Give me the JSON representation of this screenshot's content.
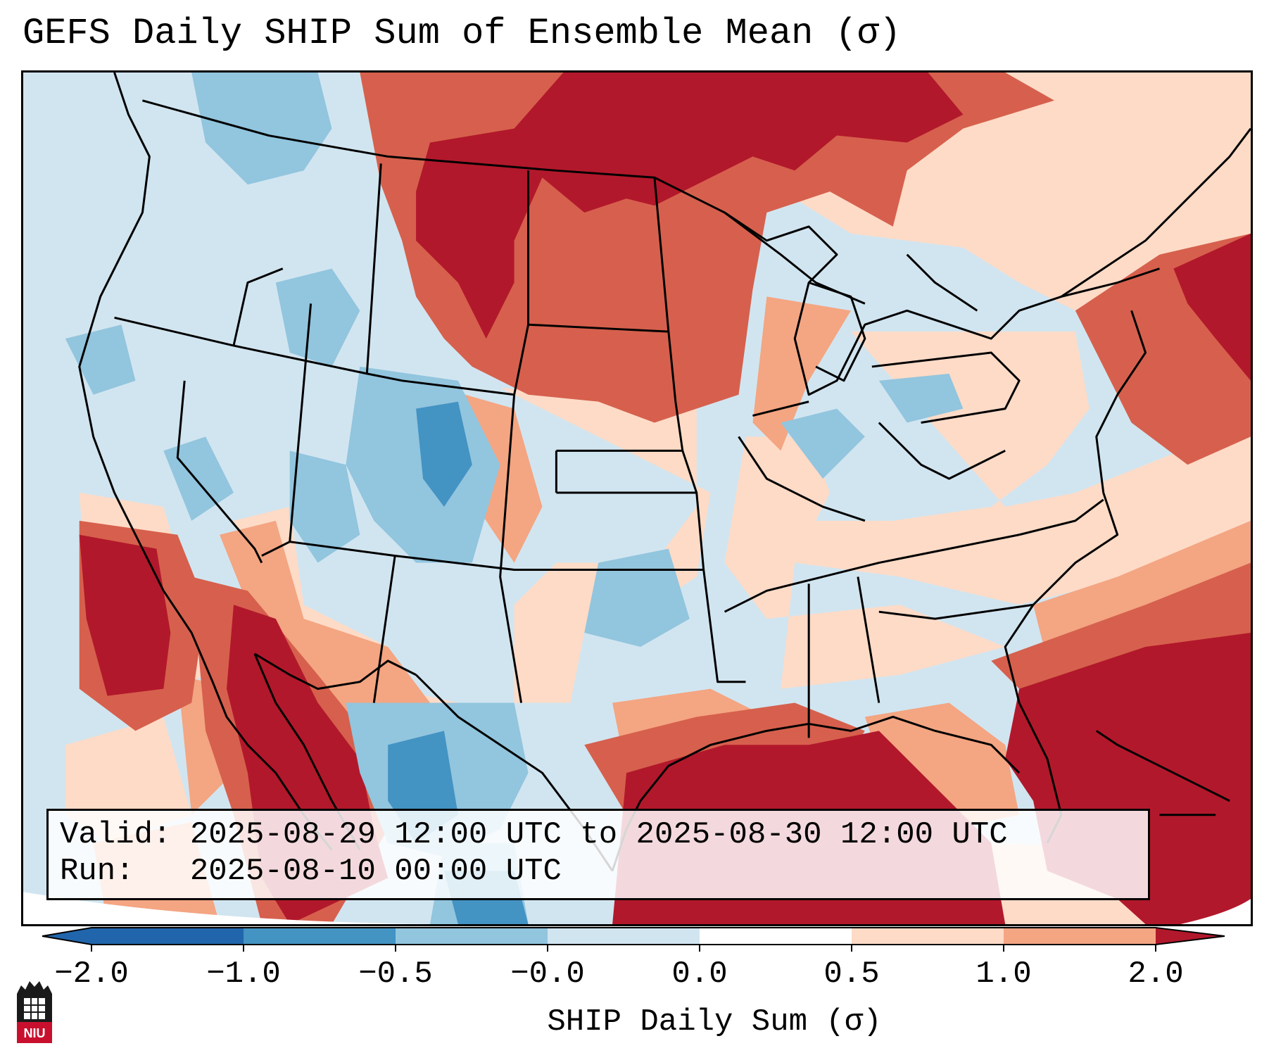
{
  "title": "GEFS Daily SHIP Sum of Ensemble Mean (σ)",
  "info": {
    "valid_line": "Valid: 2025-08-29 12:00 UTC to 2025-08-30 12:00 UTC",
    "run_line": "Run:   2025-08-10 00:00 UTC"
  },
  "colorbar": {
    "label": "SHIP Daily Sum (σ)",
    "ticks": [
      "−2.0",
      "−1.0",
      "−0.5",
      "−0.0",
      "0.0",
      "0.5",
      "1.0",
      "2.0"
    ],
    "colors": [
      "#2166ac",
      "#4393c3",
      "#92c5de",
      "#d1e5f0",
      "#ffffff",
      "#fddbc7",
      "#f4a582",
      "#d6604d",
      "#b2182b"
    ]
  },
  "logo": {
    "text": "NIU",
    "color": "#c8102e"
  }
}
